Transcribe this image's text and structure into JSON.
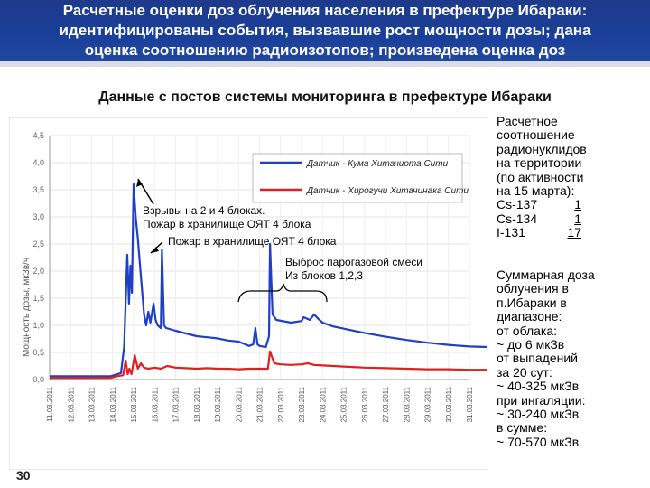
{
  "header": {
    "lines": [
      "Расчетные оценки доз облучения населения в префектуре Ибараки:",
      "идентифицированы события, вызвавшие рост мощности дозы; дана",
      "оценка соотношению радиоизотопов; произведена оценка доз"
    ]
  },
  "subtitle": "Данные с постов системы мониторинга в префектуре Ибараки",
  "annotations": {
    "explosions_l1": "Взрывы на 2 и 4 блоках.",
    "explosions_l2": "Пожар в хранилище ОЯТ 4 блока",
    "fire": "Пожар в хранилище ОЯТ 4 блока",
    "release_l1": "Выброс парогазовой смеси",
    "release_l2": "Из блоков 1,2,3"
  },
  "ratio_block": {
    "lines": [
      "Расчетное",
      "соотношение",
      "радионуклидов",
      "на территории",
      "(по активности",
      "на 15 марта):"
    ],
    "isotopes": [
      {
        "name": "Cs-137",
        "value": "1"
      },
      {
        "name": "Cs-134",
        "value": "1"
      },
      {
        "name": "I-131",
        "value": "17"
      }
    ]
  },
  "dose_block": {
    "lines": [
      "Суммарная доза",
      "облучения в",
      "п.Ибараки в",
      "диапазоне:",
      "от облака:",
      "~ до 6 мкЗв",
      "от выпадений",
      "за 20 сут:",
      "~ 40-325 мкЗв",
      "при ингаляции:",
      "~ 30-240 мкЗв",
      "в сумме:",
      "~ 70-570 мкЗв"
    ]
  },
  "page_number": "30",
  "chart_data": {
    "type": "line",
    "ylabel": "Мощность дозы, мкЗв/ч",
    "ylim": [
      0.0,
      4.5
    ],
    "yticks": [
      "0,0",
      "0,5",
      "1,0",
      "1,5",
      "2,0",
      "2,5",
      "3,0",
      "3,5",
      "4,0",
      "4,5"
    ],
    "x_categories": [
      "11.03.2011",
      "12.03.2011",
      "13.03.2011",
      "14.03.2011",
      "15.03.2011",
      "16.03.2011",
      "17.03.2011",
      "18.03.2011",
      "19.03.2011",
      "20.03.2011",
      "21.03.2011",
      "22.03.2011",
      "23.03.2011",
      "24.03.2011",
      "25.03.2011",
      "26.03.2011",
      "27.03.2011",
      "28.03.2011",
      "29.03.2011",
      "30.03.2011",
      "31.03.2011"
    ],
    "grid": true,
    "legend_position": "top-right",
    "colors": {
      "kuji": "#1f3fc4",
      "hirogu": "#e02020"
    },
    "series": [
      {
        "name": "Датчик - Кума Хитачиота Сити",
        "color_key": "kuji",
        "points": [
          [
            0,
            0.06
          ],
          [
            2.9,
            0.06
          ],
          [
            3.4,
            0.12
          ],
          [
            3.55,
            0.6
          ],
          [
            3.7,
            2.3
          ],
          [
            3.78,
            1.4
          ],
          [
            3.85,
            2.1
          ],
          [
            3.92,
            1.6
          ],
          [
            4.0,
            3.6
          ],
          [
            4.1,
            3.0
          ],
          [
            4.2,
            2.6
          ],
          [
            4.35,
            1.9
          ],
          [
            4.5,
            1.2
          ],
          [
            4.6,
            1.0
          ],
          [
            4.7,
            1.25
          ],
          [
            4.8,
            1.05
          ],
          [
            4.95,
            1.4
          ],
          [
            5.05,
            1.1
          ],
          [
            5.15,
            1.0
          ],
          [
            5.3,
            0.95
          ],
          [
            5.35,
            2.4
          ],
          [
            5.45,
            1.0
          ],
          [
            5.55,
            0.95
          ],
          [
            6.0,
            0.9
          ],
          [
            6.5,
            0.85
          ],
          [
            7.0,
            0.8
          ],
          [
            7.5,
            0.78
          ],
          [
            8.0,
            0.76
          ],
          [
            8.5,
            0.72
          ],
          [
            9.0,
            0.7
          ],
          [
            9.5,
            0.62
          ],
          [
            9.7,
            0.65
          ],
          [
            9.8,
            0.95
          ],
          [
            9.9,
            0.65
          ],
          [
            10.0,
            0.62
          ],
          [
            10.3,
            0.6
          ],
          [
            10.45,
            0.8
          ],
          [
            10.5,
            2.5
          ],
          [
            10.62,
            1.2
          ],
          [
            10.8,
            1.1
          ],
          [
            11.5,
            1.05
          ],
          [
            12.0,
            1.08
          ],
          [
            12.1,
            1.15
          ],
          [
            12.4,
            1.1
          ],
          [
            12.6,
            1.2
          ],
          [
            12.8,
            1.12
          ],
          [
            13.0,
            1.05
          ],
          [
            13.5,
            0.98
          ],
          [
            14.0,
            0.94
          ],
          [
            15.0,
            0.86
          ],
          [
            16.0,
            0.79
          ],
          [
            17.0,
            0.73
          ],
          [
            18.0,
            0.68
          ],
          [
            19.0,
            0.64
          ],
          [
            20.0,
            0.61
          ],
          [
            20.9,
            0.6
          ]
        ]
      },
      {
        "name": "Датчик - Хирогучи Хитачинака Сити",
        "color_key": "hirogu",
        "points": [
          [
            0,
            0.03
          ],
          [
            2.9,
            0.03
          ],
          [
            3.2,
            0.06
          ],
          [
            3.5,
            0.08
          ],
          [
            3.62,
            0.35
          ],
          [
            3.72,
            0.1
          ],
          [
            3.8,
            0.2
          ],
          [
            3.9,
            0.1
          ],
          [
            4.05,
            0.45
          ],
          [
            4.2,
            0.2
          ],
          [
            4.35,
            0.3
          ],
          [
            4.5,
            0.22
          ],
          [
            4.7,
            0.2
          ],
          [
            5.0,
            0.22
          ],
          [
            5.3,
            0.2
          ],
          [
            5.6,
            0.25
          ],
          [
            6.0,
            0.22
          ],
          [
            6.5,
            0.21
          ],
          [
            7.0,
            0.2
          ],
          [
            7.5,
            0.21
          ],
          [
            8.0,
            0.2
          ],
          [
            8.5,
            0.2
          ],
          [
            9.0,
            0.19
          ],
          [
            9.5,
            0.2
          ],
          [
            10.0,
            0.2
          ],
          [
            10.4,
            0.2
          ],
          [
            10.5,
            0.52
          ],
          [
            10.7,
            0.3
          ],
          [
            11.0,
            0.28
          ],
          [
            11.5,
            0.27
          ],
          [
            12.0,
            0.28
          ],
          [
            12.3,
            0.3
          ],
          [
            12.6,
            0.27
          ],
          [
            13.0,
            0.26
          ],
          [
            14.0,
            0.24
          ],
          [
            15.0,
            0.22
          ],
          [
            16.0,
            0.21
          ],
          [
            17.0,
            0.2
          ],
          [
            18.0,
            0.19
          ],
          [
            19.0,
            0.19
          ],
          [
            20.0,
            0.18
          ],
          [
            20.9,
            0.18
          ]
        ]
      }
    ]
  }
}
